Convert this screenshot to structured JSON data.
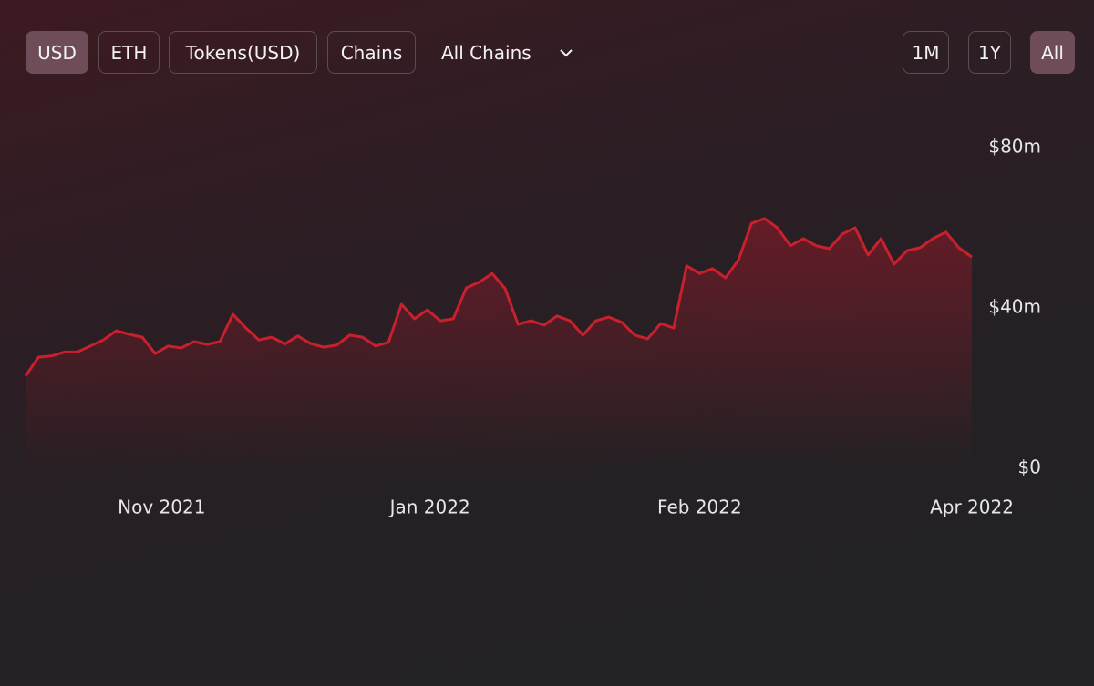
{
  "toolbar": {
    "buttons": [
      "USD",
      "ETH",
      "Tokens(USD)",
      "Chains"
    ],
    "active_button": 0,
    "dropdown": "All Chains",
    "range_buttons": [
      "1M",
      "1Y",
      "All"
    ],
    "active_range": 2
  },
  "chart_data": {
    "type": "area",
    "color": "#c8202c",
    "values": [
      23,
      27.7,
      28,
      29,
      29,
      30.5,
      32,
      34.3,
      33.4,
      32.7,
      28.6,
      30.5,
      30,
      31.6,
      30.9,
      31.6,
      38.4,
      35,
      32,
      32.7,
      31,
      33,
      31.1,
      30.2,
      30.7,
      33.2,
      32.7,
      30.5,
      31.4,
      40.9,
      37.3,
      39.5,
      36.8,
      37.3,
      45,
      46.4,
      48.6,
      44.8,
      35.9,
      36.8,
      35.7,
      38,
      36.8,
      33.2,
      36.8,
      37.7,
      36.4,
      33.2,
      32.3,
      36.1,
      35,
      50.5,
      48.6,
      49.8,
      47.5,
      52,
      61.1,
      62.3,
      60,
      55.5,
      57.3,
      55.5,
      54.8,
      58.4,
      60,
      53.2,
      57.3,
      50.9,
      54.3,
      55,
      57.3,
      58.9,
      55,
      52.7
    ],
    "xlim": [
      0,
      73
    ],
    "xticks": [
      {
        "value": 10.5,
        "label": "Nov 2021"
      },
      {
        "value": 31.2,
        "label": "Jan 2022"
      },
      {
        "value": 52,
        "label": "Feb 2022"
      },
      {
        "value": 73,
        "label": "Apr 2022"
      }
    ],
    "ylim": [
      0,
      90
    ],
    "yticks": [
      {
        "value": 0,
        "label": "$0"
      },
      {
        "value": 40,
        "label": "$40m"
      },
      {
        "value": 80,
        "label": "$80m"
      }
    ]
  }
}
